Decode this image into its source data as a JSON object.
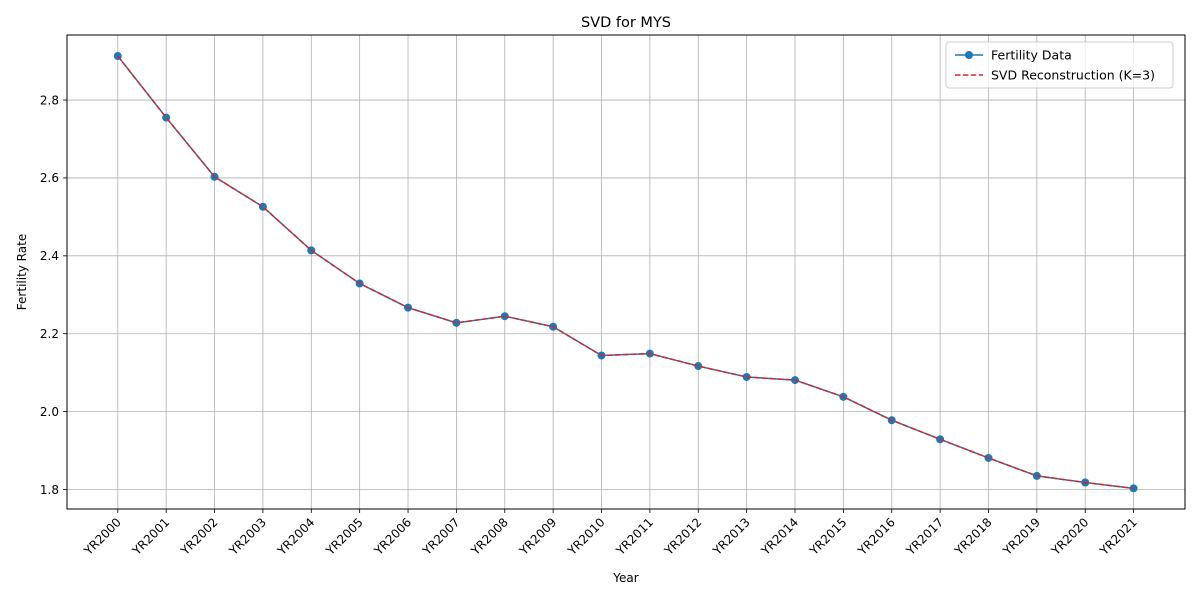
{
  "chart_data": {
    "type": "line",
    "title": "SVD for MYS",
    "xlabel": "Year",
    "ylabel": "Fertility Rate",
    "categories": [
      "YR2000",
      "YR2001",
      "YR2002",
      "YR2003",
      "YR2004",
      "YR2005",
      "YR2006",
      "YR2007",
      "YR2008",
      "YR2009",
      "YR2010",
      "YR2011",
      "YR2012",
      "YR2013",
      "YR2014",
      "YR2015",
      "YR2016",
      "YR2017",
      "YR2018",
      "YR2019",
      "YR2020",
      "YR2021"
    ],
    "ylim": [
      1.75,
      2.967
    ],
    "yticks": [
      1.8,
      2.0,
      2.2,
      2.4,
      2.6,
      2.8
    ],
    "grid": true,
    "legend_position": "top-right",
    "series": [
      {
        "name": "Fertility Data",
        "color": "#1f77b4",
        "style": "solid-with-circle-markers",
        "values": [
          2.913,
          2.755,
          2.603,
          2.526,
          2.414,
          2.329,
          2.267,
          2.228,
          2.245,
          2.218,
          2.144,
          2.149,
          2.117,
          2.089,
          2.081,
          2.038,
          1.978,
          1.929,
          1.881,
          1.835,
          1.818,
          1.803
        ]
      },
      {
        "name": "SVD Reconstruction (K=3)",
        "color": "#d62728",
        "style": "dashed",
        "values": [
          2.913,
          2.755,
          2.603,
          2.526,
          2.414,
          2.329,
          2.267,
          2.228,
          2.245,
          2.218,
          2.144,
          2.149,
          2.117,
          2.089,
          2.081,
          2.038,
          1.978,
          1.929,
          1.881,
          1.835,
          1.818,
          1.803
        ]
      }
    ]
  }
}
